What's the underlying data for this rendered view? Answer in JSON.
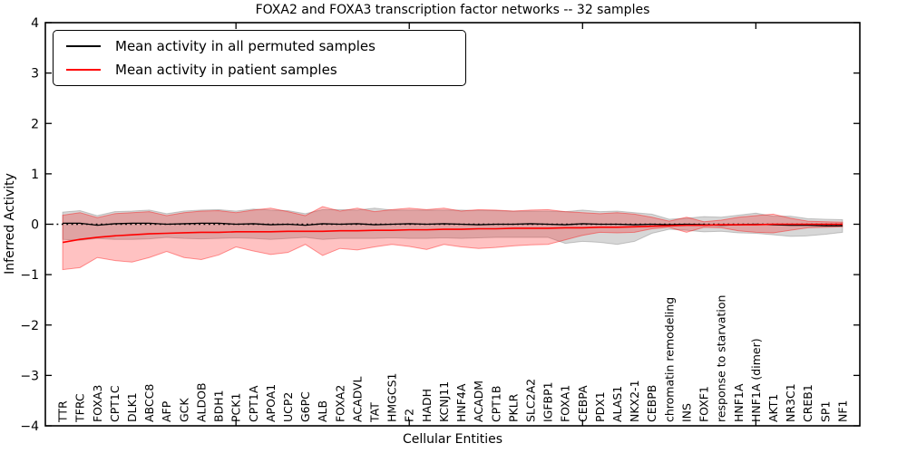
{
  "figure": {
    "title": "FOXA2 and FOXA3 transcription factor networks -- 32 samples"
  },
  "axes": {
    "xlabel": "Cellular Entities",
    "ylabel": "Inferred Activity"
  },
  "legend": {
    "items": [
      {
        "label": "Mean activity in all permuted samples",
        "color": "#000000"
      },
      {
        "label": "Mean activity in patient samples",
        "color": "#ff0000"
      }
    ],
    "position": "upper left"
  },
  "colors": {
    "permuted_line": "#000000",
    "patient_line": "#ff0000",
    "permuted_band_fill": "rgba(110,110,110,0.28)",
    "permuted_band_edge": "rgba(110,110,110,0.35)",
    "patient_band_fill": "rgba(255,0,0,0.24)",
    "patient_band_edge": "rgba(255,0,0,0.40)",
    "zero_line": "#000000",
    "axes_frame": "#000000"
  },
  "chart_data": {
    "type": "line",
    "title": "FOXA2 and FOXA3 transcription factor networks -- 32 samples",
    "xlabel": "Cellular Entities",
    "ylabel": "Inferred Activity",
    "ylim": [
      -4,
      4
    ],
    "xlim_units": [
      -1,
      46
    ],
    "yticks": [
      4,
      3,
      2,
      1,
      0,
      -1,
      -2,
      -3,
      -4
    ],
    "ytick_labels": [
      "4",
      "3",
      "2",
      "1",
      "0",
      "−1",
      "−2",
      "−3",
      "−4"
    ],
    "x_major_ticks": [
      10,
      20,
      30,
      40
    ],
    "grid": false,
    "legend_position": "upper left",
    "zero_reference_line": 0,
    "n_points": 46,
    "categories": [
      "TTR",
      "TFRC",
      "FOXA3",
      "CPT1C",
      "DLK1",
      "ABCC8",
      "AFP",
      "GCK",
      "ALDOB",
      "BDH1",
      "PCK1",
      "CPT1A",
      "APOA1",
      "UCP2",
      "G6PC",
      "ALB",
      "FOXA2",
      "ACADVL",
      "TAT",
      "HMGCS1",
      "F2",
      "HADH",
      "KCNJ11",
      "HNF4A",
      "ACADM",
      "CPT1B",
      "PKLR",
      "SLC2A2",
      "IGFBP1",
      "FOXA1",
      "CEBPA",
      "PDX1",
      "ALAS1",
      "NKX2-1",
      "CEBPB",
      "chromatin remodeling",
      "INS",
      "FOXF1",
      "response to starvation",
      "HNF1A",
      "HNF1A (dimer)",
      "AKT1",
      "NR3C1",
      "CREB1",
      "SP1",
      "NF1"
    ],
    "series": [
      {
        "name": "Mean activity in all permuted samples",
        "color": "#000000",
        "values": [
          0.02,
          0.02,
          -0.02,
          0.01,
          0.02,
          0.02,
          0.0,
          0.01,
          0.02,
          0.02,
          0.0,
          0.01,
          -0.01,
          0.0,
          -0.02,
          0.01,
          0.0,
          0.01,
          -0.01,
          0.0,
          0.01,
          0.0,
          0.01,
          0.0,
          -0.01,
          0.0,
          0.0,
          0.01,
          0.0,
          -0.01,
          0.01,
          0.0,
          0.0,
          -0.01,
          0.0,
          -0.01,
          0.0,
          -0.01,
          -0.02,
          -0.01,
          0.0,
          -0.01,
          -0.02,
          -0.02,
          -0.03,
          -0.03
        ]
      },
      {
        "name": "Mean activity in patient samples",
        "color": "#ff0000",
        "values": [
          -0.36,
          -0.3,
          -0.26,
          -0.23,
          -0.21,
          -0.19,
          -0.18,
          -0.17,
          -0.16,
          -0.16,
          -0.15,
          -0.15,
          -0.15,
          -0.14,
          -0.14,
          -0.14,
          -0.13,
          -0.13,
          -0.12,
          -0.12,
          -0.11,
          -0.11,
          -0.1,
          -0.1,
          -0.09,
          -0.09,
          -0.08,
          -0.08,
          -0.08,
          -0.07,
          -0.07,
          -0.06,
          -0.06,
          -0.05,
          -0.04,
          -0.03,
          -0.02,
          -0.02,
          -0.01,
          -0.01,
          -0.01,
          0.0,
          0.0,
          0.0,
          0.0,
          0.0
        ]
      }
    ],
    "bands": [
      {
        "name": "permuted-samples-range",
        "upper": [
          0.24,
          0.27,
          0.17,
          0.25,
          0.26,
          0.28,
          0.21,
          0.26,
          0.28,
          0.29,
          0.26,
          0.3,
          0.28,
          0.27,
          0.21,
          0.29,
          0.29,
          0.28,
          0.32,
          0.28,
          0.28,
          0.28,
          0.28,
          0.28,
          0.27,
          0.27,
          0.26,
          0.26,
          0.26,
          0.25,
          0.28,
          0.25,
          0.26,
          0.23,
          0.2,
          0.1,
          0.12,
          0.15,
          0.14,
          0.18,
          0.22,
          0.16,
          0.16,
          0.11,
          0.1,
          0.09
        ],
        "lower": [
          -0.3,
          -0.32,
          -0.28,
          -0.3,
          -0.3,
          -0.29,
          -0.26,
          -0.28,
          -0.29,
          -0.28,
          -0.27,
          -0.28,
          -0.3,
          -0.28,
          -0.26,
          -0.3,
          -0.28,
          -0.28,
          -0.28,
          -0.27,
          -0.28,
          -0.28,
          -0.27,
          -0.28,
          -0.27,
          -0.26,
          -0.26,
          -0.26,
          -0.26,
          -0.38,
          -0.34,
          -0.36,
          -0.4,
          -0.34,
          -0.18,
          -0.1,
          -0.12,
          -0.15,
          -0.14,
          -0.17,
          -0.18,
          -0.21,
          -0.24,
          -0.23,
          -0.2,
          -0.16
        ]
      },
      {
        "name": "patient-samples-range",
        "upper": [
          0.18,
          0.23,
          0.13,
          0.21,
          0.23,
          0.25,
          0.17,
          0.23,
          0.26,
          0.27,
          0.23,
          0.28,
          0.32,
          0.25,
          0.17,
          0.35,
          0.26,
          0.32,
          0.25,
          0.29,
          0.32,
          0.29,
          0.32,
          0.26,
          0.29,
          0.28,
          0.26,
          0.28,
          0.29,
          0.25,
          0.23,
          0.21,
          0.23,
          0.2,
          0.14,
          0.06,
          0.14,
          0.05,
          0.08,
          0.14,
          0.17,
          0.2,
          0.12,
          0.06,
          0.05,
          0.04
        ],
        "lower": [
          -0.9,
          -0.86,
          -0.66,
          -0.72,
          -0.75,
          -0.66,
          -0.54,
          -0.66,
          -0.7,
          -0.61,
          -0.45,
          -0.53,
          -0.6,
          -0.56,
          -0.4,
          -0.62,
          -0.48,
          -0.51,
          -0.45,
          -0.4,
          -0.44,
          -0.5,
          -0.4,
          -0.45,
          -0.48,
          -0.46,
          -0.43,
          -0.41,
          -0.4,
          -0.31,
          -0.22,
          -0.16,
          -0.17,
          -0.16,
          -0.09,
          -0.06,
          -0.16,
          -0.06,
          -0.07,
          -0.13,
          -0.16,
          -0.17,
          -0.12,
          -0.07,
          -0.06,
          -0.05
        ]
      }
    ]
  }
}
